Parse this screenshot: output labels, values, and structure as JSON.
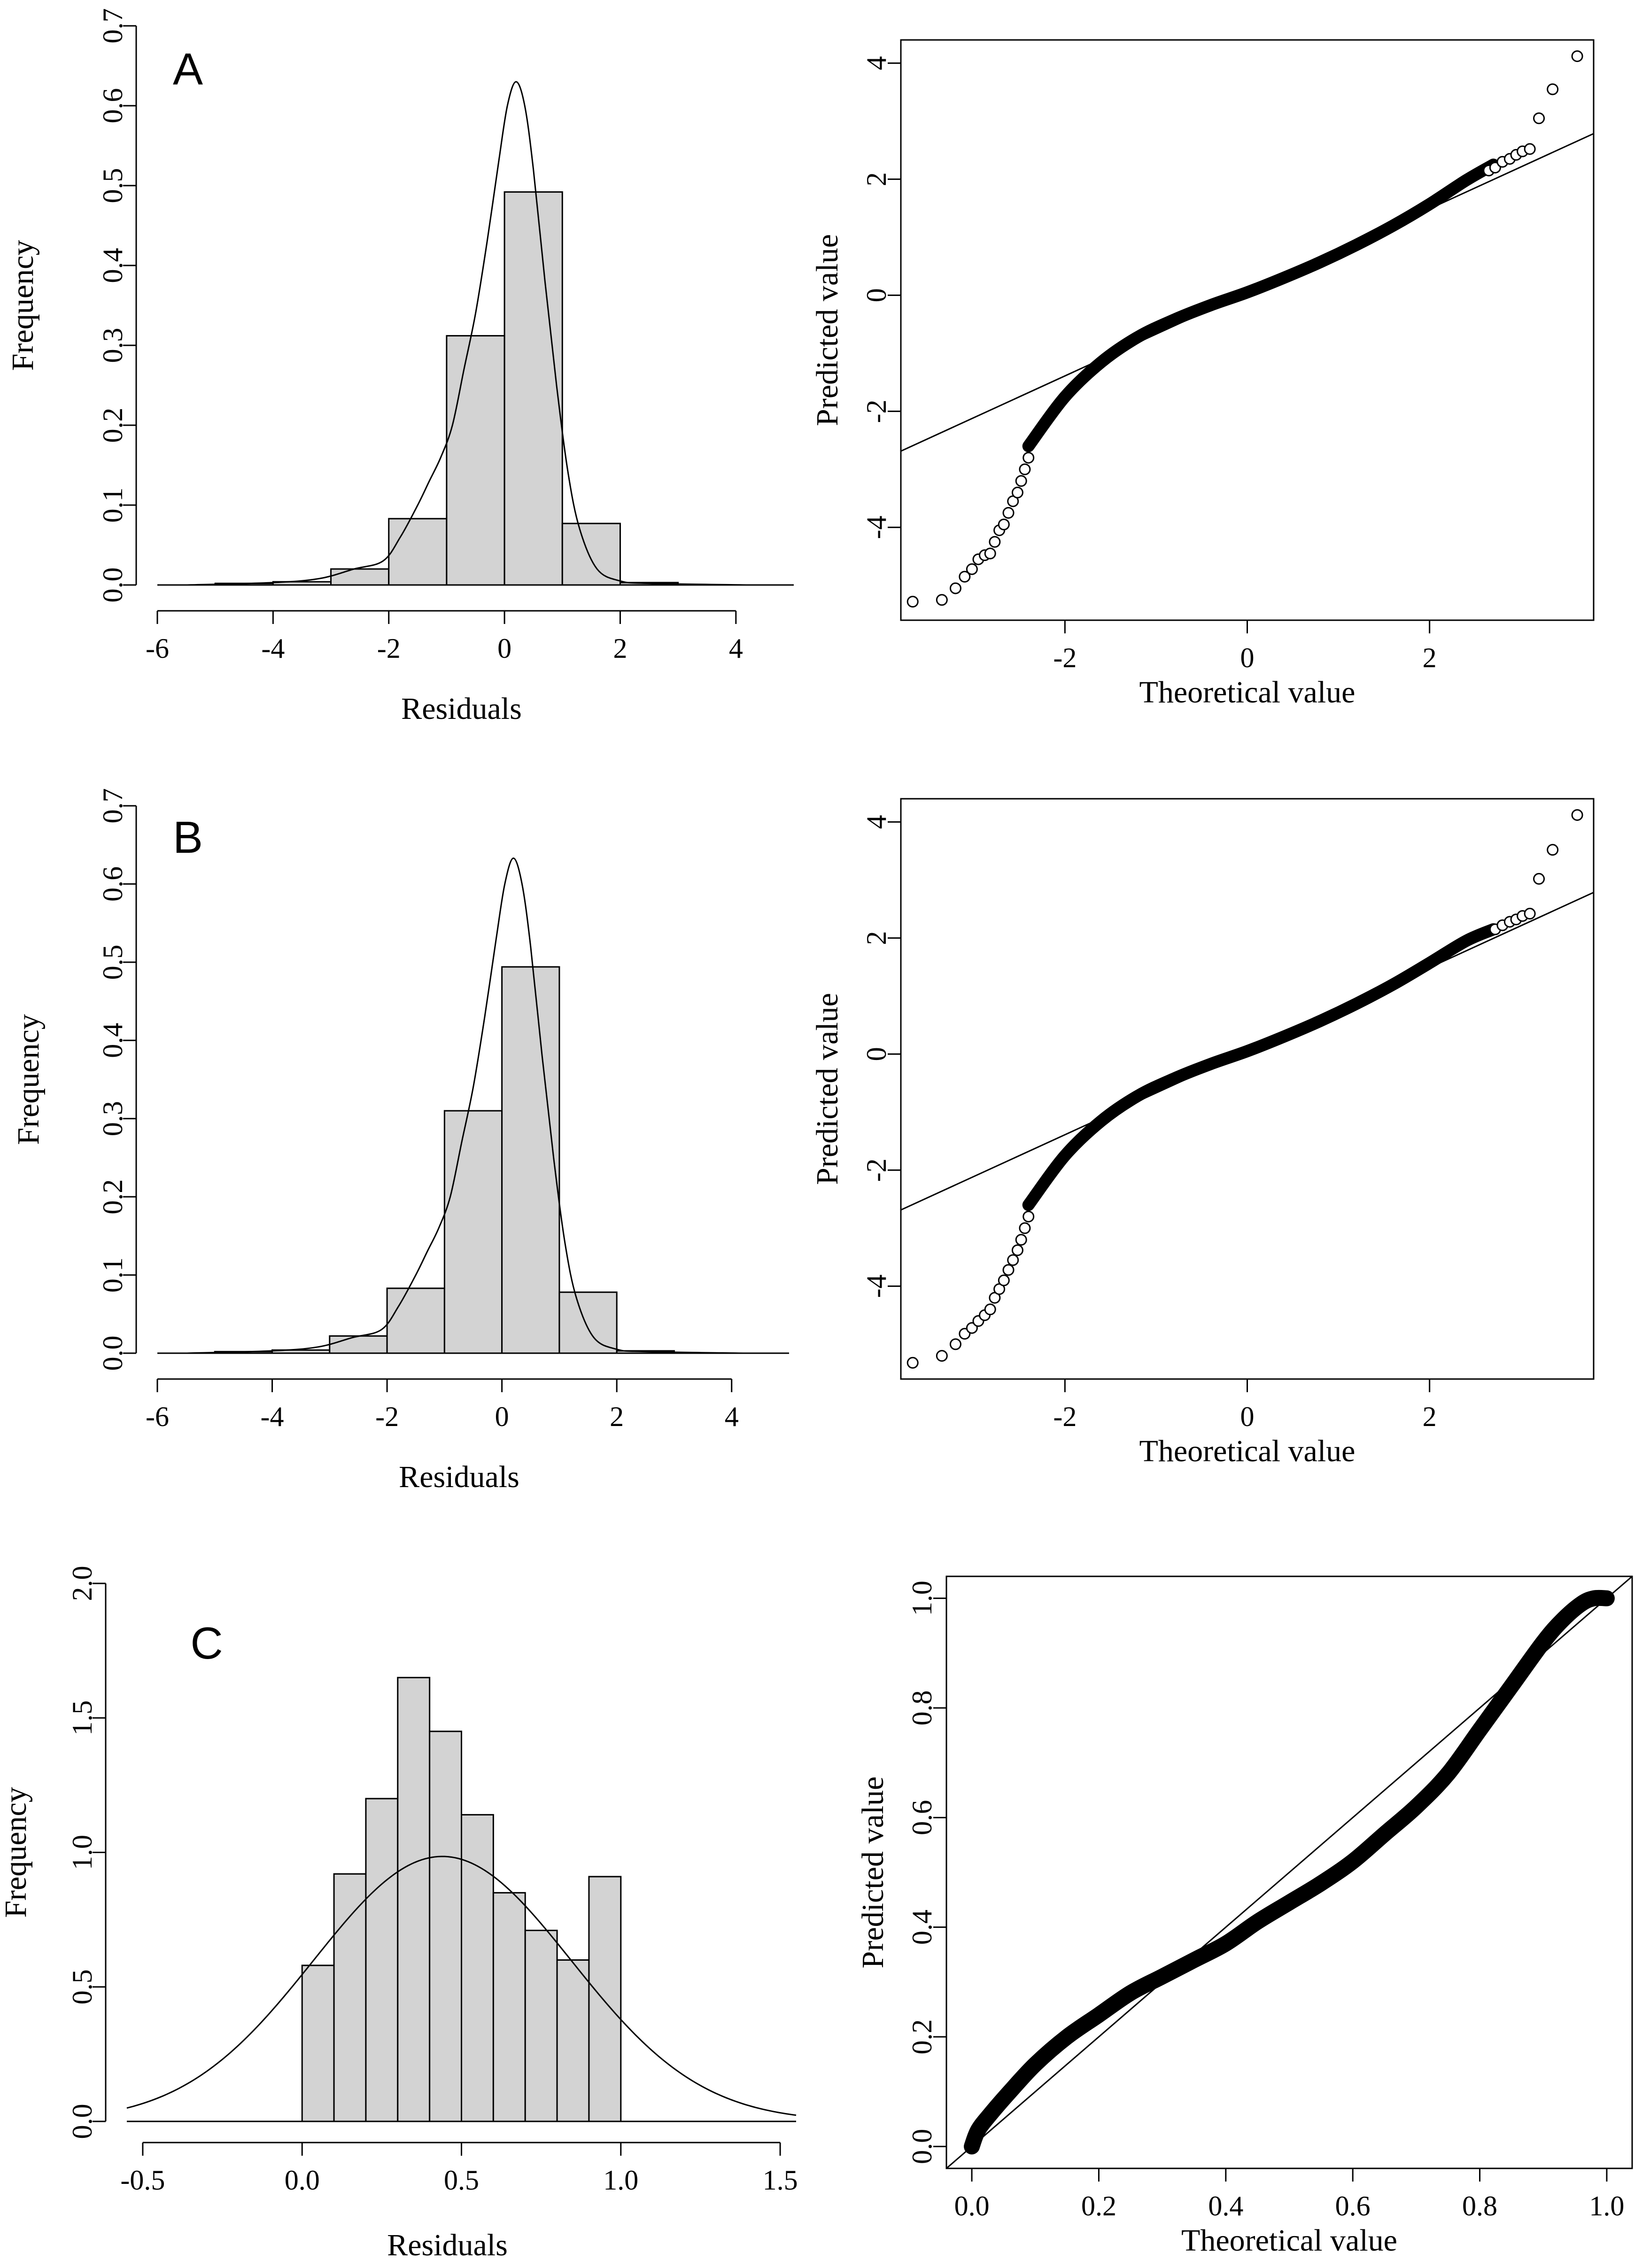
{
  "panel_labels": [
    "A",
    "B",
    "C"
  ],
  "chart_data": [
    {
      "type": "bar",
      "subtype": "histogram",
      "label": "A",
      "xlabel": "Residuals",
      "ylabel": "Frequency",
      "xlim": [
        -6,
        5
      ],
      "ylim": [
        0,
        0.7
      ],
      "xticks": [
        -6,
        -4,
        -2,
        0,
        2,
        4
      ],
      "yticks": [
        0.0,
        0.1,
        0.2,
        0.3,
        0.4,
        0.5,
        0.6,
        0.7
      ],
      "bins": [
        {
          "x0": -5,
          "x1": -4,
          "value": 0.002
        },
        {
          "x0": -4,
          "x1": -3,
          "value": 0.004
        },
        {
          "x0": -3,
          "x1": -2,
          "value": 0.02
        },
        {
          "x0": -2,
          "x1": -1,
          "value": 0.083
        },
        {
          "x0": -1,
          "x1": 0,
          "value": 0.312
        },
        {
          "x0": 0,
          "x1": 1,
          "value": 0.492
        },
        {
          "x0": 1,
          "x1": 2,
          "value": 0.077
        },
        {
          "x0": 2,
          "x1": 3,
          "value": 0.003
        }
      ],
      "density_curve": {
        "x": [
          -5.5,
          -4,
          -3.2,
          -2.6,
          -2.1,
          -1.8,
          -1.5,
          -1.3,
          -1.1,
          -0.9,
          -0.7,
          -0.5,
          -0.3,
          -0.1,
          0.05,
          0.2,
          0.35,
          0.5,
          0.7,
          0.9,
          1.1,
          1.3,
          1.6,
          2.0,
          2.5,
          4.2
        ],
        "y": [
          0.0,
          0.003,
          0.008,
          0.02,
          0.03,
          0.06,
          0.1,
          0.13,
          0.16,
          0.2,
          0.27,
          0.34,
          0.43,
          0.53,
          0.6,
          0.63,
          0.6,
          0.52,
          0.38,
          0.25,
          0.14,
          0.07,
          0.02,
          0.005,
          0.002,
          0.0
        ]
      }
    },
    {
      "type": "scatter",
      "subtype": "qq",
      "xlabel": "Theoretical value",
      "ylabel": "Predicted value",
      "xlim": [
        -3.8,
        3.8
      ],
      "ylim": [
        -5.6,
        4.4
      ],
      "xticks": [
        -2,
        0,
        2
      ],
      "yticks": [
        -4,
        -2,
        0,
        2,
        4
      ],
      "reference_line": {
        "intercept": 0.05,
        "slope": 0.72
      },
      "curve": {
        "x": [
          -2.4,
          -2.0,
          -1.6,
          -1.2,
          -0.8,
          -0.4,
          0.0,
          0.4,
          0.8,
          1.2,
          1.6,
          2.0,
          2.4,
          2.7
        ],
        "y": [
          -2.6,
          -1.75,
          -1.15,
          -0.72,
          -0.42,
          -0.17,
          0.05,
          0.3,
          0.57,
          0.87,
          1.2,
          1.57,
          1.98,
          2.25
        ]
      },
      "outliers": [
        {
          "x": -3.67,
          "y": -5.28
        },
        {
          "x": -3.35,
          "y": -5.25
        },
        {
          "x": -3.2,
          "y": -5.05
        },
        {
          "x": -3.1,
          "y": -4.85
        },
        {
          "x": -3.02,
          "y": -4.72
        },
        {
          "x": -2.95,
          "y": -4.55
        },
        {
          "x": -2.88,
          "y": -4.48
        },
        {
          "x": -2.82,
          "y": -4.45
        },
        {
          "x": -2.77,
          "y": -4.25
        },
        {
          "x": -2.72,
          "y": -4.05
        },
        {
          "x": -2.67,
          "y": -3.95
        },
        {
          "x": -2.62,
          "y": -3.75
        },
        {
          "x": -2.57,
          "y": -3.55
        },
        {
          "x": -2.52,
          "y": -3.4
        },
        {
          "x": -2.48,
          "y": -3.2
        },
        {
          "x": -2.44,
          "y": -3.0
        },
        {
          "x": -2.4,
          "y": -2.8
        },
        {
          "x": 2.65,
          "y": 2.15
        },
        {
          "x": 2.72,
          "y": 2.2
        },
        {
          "x": 2.8,
          "y": 2.3
        },
        {
          "x": 2.88,
          "y": 2.35
        },
        {
          "x": 2.95,
          "y": 2.42
        },
        {
          "x": 3.02,
          "y": 2.48
        },
        {
          "x": 3.1,
          "y": 2.52
        },
        {
          "x": 3.2,
          "y": 3.05
        },
        {
          "x": 3.35,
          "y": 3.55
        },
        {
          "x": 3.62,
          "y": 4.12
        }
      ]
    },
    {
      "type": "bar",
      "subtype": "histogram",
      "label": "B",
      "xlabel": "Residuals",
      "ylabel": "Frequency",
      "xlim": [
        -6,
        5
      ],
      "ylim": [
        0,
        0.7
      ],
      "xticks": [
        -6,
        -4,
        -2,
        0,
        2,
        4
      ],
      "yticks": [
        0.0,
        0.1,
        0.2,
        0.3,
        0.4,
        0.5,
        0.6,
        0.7
      ],
      "bins": [
        {
          "x0": -5,
          "x1": -4,
          "value": 0.002
        },
        {
          "x0": -4,
          "x1": -3,
          "value": 0.004
        },
        {
          "x0": -3,
          "x1": -2,
          "value": 0.022
        },
        {
          "x0": -2,
          "x1": -1,
          "value": 0.083
        },
        {
          "x0": -1,
          "x1": 0,
          "value": 0.31
        },
        {
          "x0": 0,
          "x1": 1,
          "value": 0.494
        },
        {
          "x0": 1,
          "x1": 2,
          "value": 0.078
        },
        {
          "x0": 2,
          "x1": 3,
          "value": 0.003
        }
      ],
      "density_curve": {
        "x": [
          -5.5,
          -4,
          -3.2,
          -2.6,
          -2.1,
          -1.8,
          -1.5,
          -1.3,
          -1.1,
          -0.9,
          -0.7,
          -0.5,
          -0.3,
          -0.1,
          0.05,
          0.2,
          0.35,
          0.5,
          0.7,
          0.9,
          1.1,
          1.3,
          1.6,
          2.0,
          2.5,
          4.2
        ],
        "y": [
          0.0,
          0.003,
          0.008,
          0.02,
          0.03,
          0.06,
          0.1,
          0.13,
          0.16,
          0.2,
          0.27,
          0.34,
          0.43,
          0.53,
          0.6,
          0.633,
          0.6,
          0.52,
          0.38,
          0.25,
          0.14,
          0.07,
          0.02,
          0.005,
          0.002,
          0.0
        ]
      }
    },
    {
      "type": "scatter",
      "subtype": "qq",
      "xlabel": "Theoretical value",
      "ylabel": "Predicted value",
      "xlim": [
        -3.8,
        3.8
      ],
      "ylim": [
        -5.6,
        4.4
      ],
      "xticks": [
        -2,
        0,
        2
      ],
      "yticks": [
        -4,
        -2,
        0,
        2,
        4
      ],
      "reference_line": {
        "intercept": 0.05,
        "slope": 0.72
      },
      "curve": {
        "x": [
          -2.4,
          -2.0,
          -1.6,
          -1.2,
          -0.8,
          -0.4,
          0.0,
          0.4,
          0.8,
          1.2,
          1.6,
          2.0,
          2.4,
          2.7
        ],
        "y": [
          -2.6,
          -1.75,
          -1.15,
          -0.72,
          -0.42,
          -0.17,
          0.05,
          0.3,
          0.57,
          0.87,
          1.2,
          1.57,
          1.95,
          2.15
        ]
      },
      "outliers": [
        {
          "x": -3.67,
          "y": -5.32
        },
        {
          "x": -3.35,
          "y": -5.2
        },
        {
          "x": -3.2,
          "y": -5.0
        },
        {
          "x": -3.1,
          "y": -4.82
        },
        {
          "x": -3.02,
          "y": -4.72
        },
        {
          "x": -2.95,
          "y": -4.6
        },
        {
          "x": -2.88,
          "y": -4.5
        },
        {
          "x": -2.82,
          "y": -4.4
        },
        {
          "x": -2.77,
          "y": -4.2
        },
        {
          "x": -2.72,
          "y": -4.05
        },
        {
          "x": -2.67,
          "y": -3.9
        },
        {
          "x": -2.62,
          "y": -3.72
        },
        {
          "x": -2.57,
          "y": -3.55
        },
        {
          "x": -2.52,
          "y": -3.38
        },
        {
          "x": -2.48,
          "y": -3.2
        },
        {
          "x": -2.44,
          "y": -3.0
        },
        {
          "x": -2.4,
          "y": -2.8
        },
        {
          "x": 2.72,
          "y": 2.15
        },
        {
          "x": 2.8,
          "y": 2.22
        },
        {
          "x": 2.88,
          "y": 2.28
        },
        {
          "x": 2.95,
          "y": 2.32
        },
        {
          "x": 3.02,
          "y": 2.38
        },
        {
          "x": 3.1,
          "y": 2.42
        },
        {
          "x": 3.2,
          "y": 3.02
        },
        {
          "x": 3.35,
          "y": 3.52
        },
        {
          "x": 3.62,
          "y": 4.12
        }
      ]
    },
    {
      "type": "bar",
      "subtype": "histogram",
      "label": "C",
      "xlabel": "Residuals",
      "ylabel": "Frequency",
      "xlim": [
        -0.55,
        1.55
      ],
      "ylim": [
        0,
        2.0
      ],
      "xticks": [
        -0.5,
        0.0,
        0.5,
        1.0,
        1.5
      ],
      "xtick_labels": [
        "-0.5",
        "0.0",
        "0.5",
        "1.0",
        "1.5"
      ],
      "yticks": [
        0.0,
        0.5,
        1.0,
        1.5,
        2.0
      ],
      "ytick_labels": [
        "0.0",
        "0.5",
        "1.0",
        "1.5",
        "2.0"
      ],
      "bins": [
        {
          "x0": 0.0,
          "x1": 0.1,
          "value": 0.58
        },
        {
          "x0": 0.1,
          "x1": 0.2,
          "value": 0.92
        },
        {
          "x0": 0.2,
          "x1": 0.3,
          "value": 1.2
        },
        {
          "x0": 0.3,
          "x1": 0.4,
          "value": 1.65
        },
        {
          "x0": 0.4,
          "x1": 0.5,
          "value": 1.45
        },
        {
          "x0": 0.5,
          "x1": 0.6,
          "value": 1.14
        },
        {
          "x0": 0.6,
          "x1": 0.7,
          "value": 0.85
        },
        {
          "x0": 0.7,
          "x1": 0.8,
          "value": 0.71
        },
        {
          "x0": 0.8,
          "x1": 0.9,
          "value": 0.6
        },
        {
          "x0": 0.9,
          "x1": 1.0,
          "value": 0.91
        }
      ],
      "normal_curve": {
        "mean": 0.44,
        "sd": 0.405
      }
    },
    {
      "type": "scatter",
      "subtype": "qq",
      "xlabel": "Theoretical value",
      "ylabel": "Predicted value",
      "xlim": [
        -0.04,
        1.04
      ],
      "ylim": [
        -0.04,
        1.04
      ],
      "xticks": [
        0.0,
        0.2,
        0.4,
        0.6,
        0.8,
        1.0
      ],
      "xtick_labels": [
        "0.0",
        "0.2",
        "0.4",
        "0.6",
        "0.8",
        "1.0"
      ],
      "yticks": [
        0.0,
        0.2,
        0.4,
        0.6,
        0.8,
        1.0
      ],
      "ytick_labels": [
        "0.0",
        "0.2",
        "0.4",
        "0.6",
        "0.8",
        "1.0"
      ],
      "reference_line": {
        "intercept": 0,
        "slope": 1
      },
      "curve": {
        "x": [
          0.0,
          0.01,
          0.03,
          0.06,
          0.1,
          0.15,
          0.2,
          0.25,
          0.3,
          0.35,
          0.4,
          0.45,
          0.5,
          0.55,
          0.6,
          0.65,
          0.7,
          0.75,
          0.8,
          0.85,
          0.9,
          0.93,
          0.96,
          0.98,
          1.0
        ],
        "y": [
          0.0,
          0.03,
          0.06,
          0.1,
          0.15,
          0.2,
          0.24,
          0.28,
          0.31,
          0.34,
          0.37,
          0.41,
          0.445,
          0.48,
          0.52,
          0.57,
          0.62,
          0.68,
          0.76,
          0.84,
          0.92,
          0.96,
          0.99,
          1.0,
          1.0
        ]
      }
    }
  ]
}
